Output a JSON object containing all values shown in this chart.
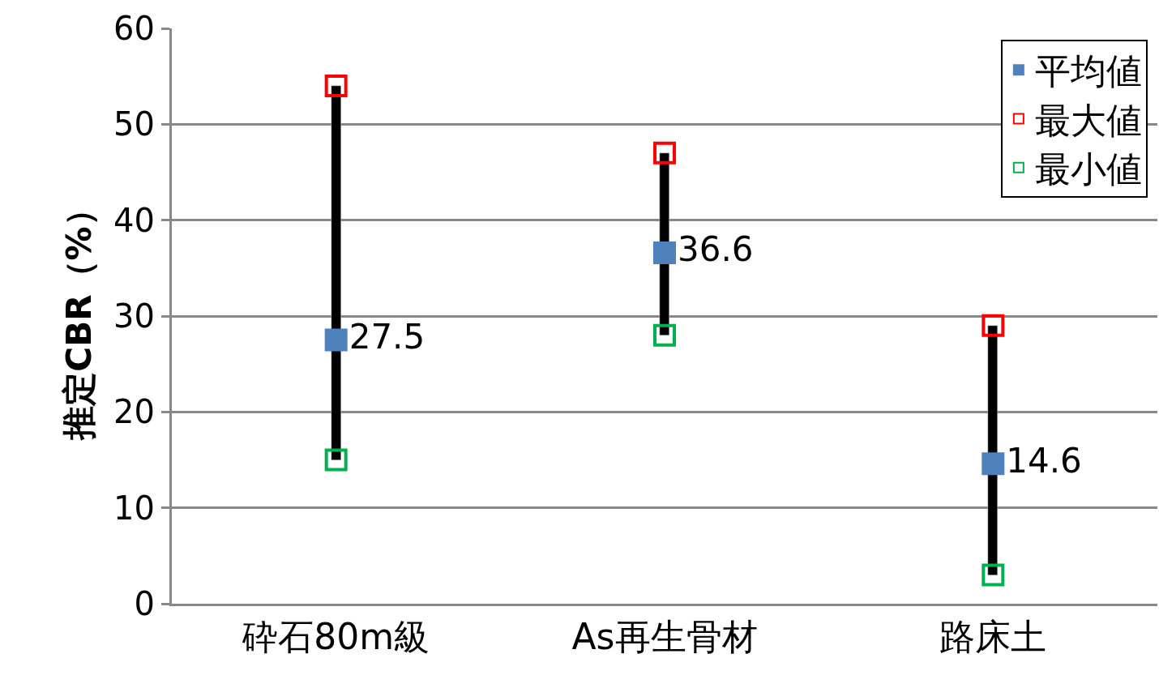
{
  "chart_data": {
    "type": "scatter",
    "ylabel": "推定CBR（%）",
    "categories": [
      "砕石80m級",
      "As再生骨材",
      "路床土"
    ],
    "series": [
      {
        "type": "bar",
        "color": "#000000",
        "base": [
          15,
          28,
          3
        ],
        "values": [
          39,
          19,
          26
        ]
      },
      {
        "name": "平均値",
        "color": "#4f81bd",
        "values": [
          27.5,
          36.6,
          14.6
        ],
        "value_labels": [
          "27.5",
          "36.6",
          "14.6"
        ]
      },
      {
        "name": "最大値",
        "color": "#ff0000",
        "values": [
          54,
          47,
          29
        ]
      },
      {
        "name": "最小値",
        "color": "#00b050",
        "values": [
          15,
          28,
          3
        ]
      }
    ],
    "ylim": [
      0,
      60
    ],
    "yticks": [
      0,
      10,
      20,
      30,
      40,
      50,
      60
    ],
    "grid": "y",
    "legend": "top right",
    "marker": "square"
  }
}
